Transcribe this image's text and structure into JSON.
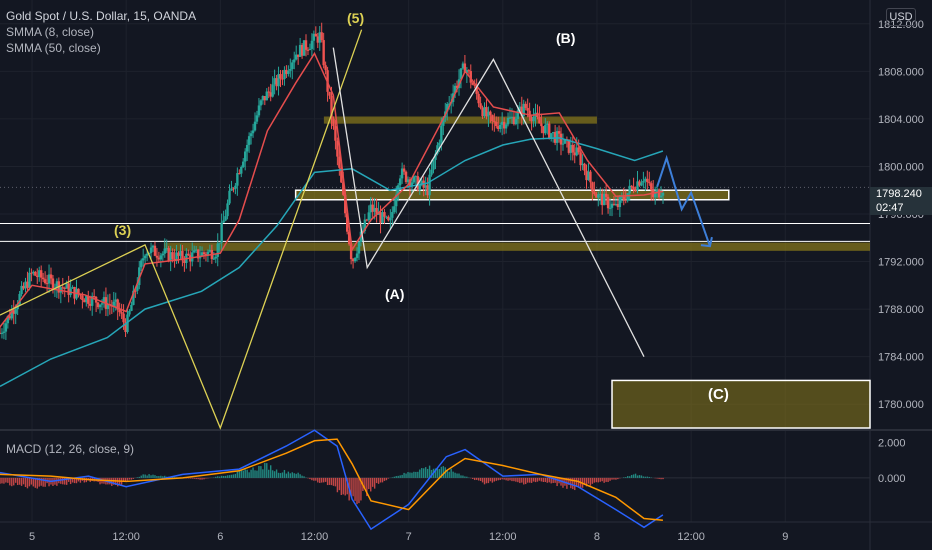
{
  "legend": {
    "symbol": "Gold Spot / U.S. Dollar, 15, OANDA",
    "ind1": "SMMA (8, close)",
    "ind2": "SMMA (50, close)",
    "macd": "MACD (12, 26, close, 9)"
  },
  "currency": "USD",
  "price_tag": {
    "price": "1798.240",
    "timer": "02:47"
  },
  "colors": {
    "background": "#131722",
    "grid": "#1e222d",
    "up": "#26a69a",
    "down": "#ef5350",
    "smma_fast": "#e54d4d",
    "smma_slow": "#26a6b8",
    "zone": "#8a7a1a",
    "yellow_wave": "#ddd154",
    "white_wave": "#e0e0e0",
    "projection": "#3d7fd9",
    "macd_line": "#2962ff",
    "signal_line": "#ff9800"
  },
  "wave_labels": [
    "(3)",
    "(5)",
    "(A)",
    "(B)",
    "(C)"
  ],
  "chart_data": [
    {
      "type": "line",
      "title": "Gold Spot / U.S. Dollar, 15, OANDA",
      "ylabel": "USD",
      "ylim": [
        1778.0,
        1814.0
      ],
      "y_ticks": [
        "1812.000",
        "1808.000",
        "1804.000",
        "1800.000",
        "1796.000",
        "1792.000",
        "1788.000",
        "1784.000",
        "1780.000"
      ],
      "x_ticks": [
        "5",
        "12:00",
        "6",
        "12:00",
        "7",
        "12:00",
        "8",
        "12:00",
        "9"
      ],
      "x_tick_positions": [
        0.5,
        1.0,
        1.5,
        2.0,
        2.5,
        3.0,
        3.5,
        4.0,
        4.5
      ],
      "x_range_days": [
        0.33,
        4.95
      ],
      "last_price": 1798.24,
      "price_path_days": [
        0.33,
        0.5,
        0.78,
        0.95,
        1.0,
        1.1,
        1.3,
        1.48,
        1.55,
        1.72,
        1.82,
        1.9,
        2.03,
        2.2,
        2.3,
        2.4,
        2.45,
        2.6,
        2.7,
        2.8,
        2.9,
        2.95,
        3.05,
        3.12,
        3.2,
        3.4,
        3.5,
        3.6,
        3.7,
        3.75,
        3.8,
        3.85
      ],
      "price_path": [
        1786.0,
        1791.0,
        1789.0,
        1788.2,
        1786.5,
        1793.0,
        1792.3,
        1792.9,
        1797.5,
        1805.5,
        1807.5,
        1809.5,
        1811.0,
        1792.0,
        1796.5,
        1795.0,
        1799.5,
        1798.0,
        1805.0,
        1808.5,
        1804.5,
        1803.5,
        1804.0,
        1805.0,
        1803.5,
        1801.0,
        1797.5,
        1796.5,
        1798.5,
        1799.2,
        1797.4,
        1798.24
      ],
      "smma_fast_days": [
        0.33,
        0.5,
        0.78,
        1.0,
        1.1,
        1.3,
        1.5,
        1.6,
        1.75,
        1.9,
        2.0,
        2.1,
        2.2,
        2.3,
        2.5,
        2.7,
        2.8,
        2.95,
        3.15,
        3.3,
        3.45,
        3.6,
        3.75,
        3.85
      ],
      "smma_fast": [
        1786.5,
        1790.0,
        1789.2,
        1787.8,
        1791.8,
        1792.2,
        1792.7,
        1795.5,
        1803.0,
        1807.0,
        1809.5,
        1806.0,
        1793.0,
        1795.5,
        1798.5,
        1804.5,
        1808.0,
        1805.0,
        1804.3,
        1804.5,
        1800.5,
        1797.5,
        1797.6,
        1797.9
      ],
      "smma_slow_days": [
        0.33,
        0.6,
        0.9,
        1.1,
        1.4,
        1.6,
        1.8,
        2.0,
        2.2,
        2.4,
        2.6,
        2.8,
        3.0,
        3.15,
        3.3,
        3.5,
        3.7,
        3.85
      ],
      "smma_slow": [
        1781.5,
        1783.8,
        1785.6,
        1788.0,
        1789.5,
        1791.5,
        1795.0,
        1799.5,
        1799.8,
        1798.0,
        1798.6,
        1800.5,
        1801.8,
        1802.3,
        1802.4,
        1801.5,
        1800.5,
        1801.3
      ],
      "zones": [
        {
          "x": [
            2.05,
            3.5
          ],
          "y": [
            1804.2,
            1803.6
          ]
        },
        {
          "x": [
            1.9,
            4.2
          ],
          "y": [
            1798.0,
            1797.2
          ]
        },
        {
          "x": [
            1.2,
            4.95
          ],
          "y": [
            1793.6,
            1792.9
          ]
        },
        {
          "x": [
            3.58,
            4.95
          ],
          "y": [
            1782.0,
            1778.0
          ]
        }
      ],
      "hlines": [
        1795.2,
        1793.7
      ],
      "yellow_wave_days": [
        0.33,
        1.1,
        1.5,
        2.25
      ],
      "yellow_wave": [
        1787.5,
        1793.4,
        1778.0,
        1811.5
      ],
      "white_wave_days": [
        2.1,
        2.28,
        2.95,
        3.75
      ],
      "white_wave": [
        1810.0,
        1791.5,
        1809.0,
        1784.0
      ],
      "projection_days": [
        3.82,
        3.87,
        3.95,
        4.0,
        4.1
      ],
      "projection": [
        1798.3,
        1800.7,
        1796.4,
        1797.8,
        1793.3
      ]
    },
    {
      "type": "bar",
      "title": "MACD (12, 26, close, 9)",
      "ylim": [
        -2.5,
        2.6
      ],
      "y_ticks": [
        "2.000",
        "0.000"
      ],
      "hist_days": [
        0.33,
        0.5,
        0.8,
        0.95,
        1.1,
        1.4,
        1.6,
        1.75,
        1.8,
        1.9,
        2.0,
        2.1,
        2.2,
        2.3,
        2.4,
        2.5,
        2.6,
        2.7,
        2.8,
        2.9,
        3.0,
        3.1,
        3.2,
        3.3,
        3.4,
        3.5,
        3.6,
        3.7,
        3.85
      ],
      "histogram": [
        -0.3,
        -0.5,
        -0.2,
        -0.4,
        0.2,
        -0.1,
        0.3,
        0.7,
        0.4,
        0.3,
        -0.2,
        -0.4,
        -1.5,
        -0.6,
        0.0,
        0.3,
        0.6,
        0.5,
        0.1,
        -0.3,
        -0.1,
        -0.3,
        -0.2,
        -0.4,
        -0.6,
        -0.3,
        -0.1,
        0.2,
        -0.1
      ],
      "macd_days": [
        0.33,
        0.6,
        0.8,
        1.0,
        1.3,
        1.6,
        1.85,
        2.0,
        2.12,
        2.2,
        2.3,
        2.5,
        2.7,
        2.8,
        3.0,
        3.2,
        3.4,
        3.6,
        3.75,
        3.85
      ],
      "macd_line": [
        0.3,
        -0.2,
        0.1,
        -0.5,
        0.2,
        0.5,
        1.8,
        2.7,
        1.8,
        -1.2,
        -2.9,
        -1.5,
        1.2,
        1.6,
        0.1,
        0.2,
        -0.5,
        -1.8,
        -2.8,
        -2.1
      ],
      "signal_line": [
        0.2,
        0.1,
        -0.1,
        -0.2,
        0.0,
        0.4,
        1.4,
        2.1,
        2.2,
        0.8,
        -1.3,
        -1.8,
        0.4,
        1.1,
        0.7,
        0.2,
        -0.2,
        -1.1,
        -2.3,
        -2.4
      ]
    }
  ]
}
